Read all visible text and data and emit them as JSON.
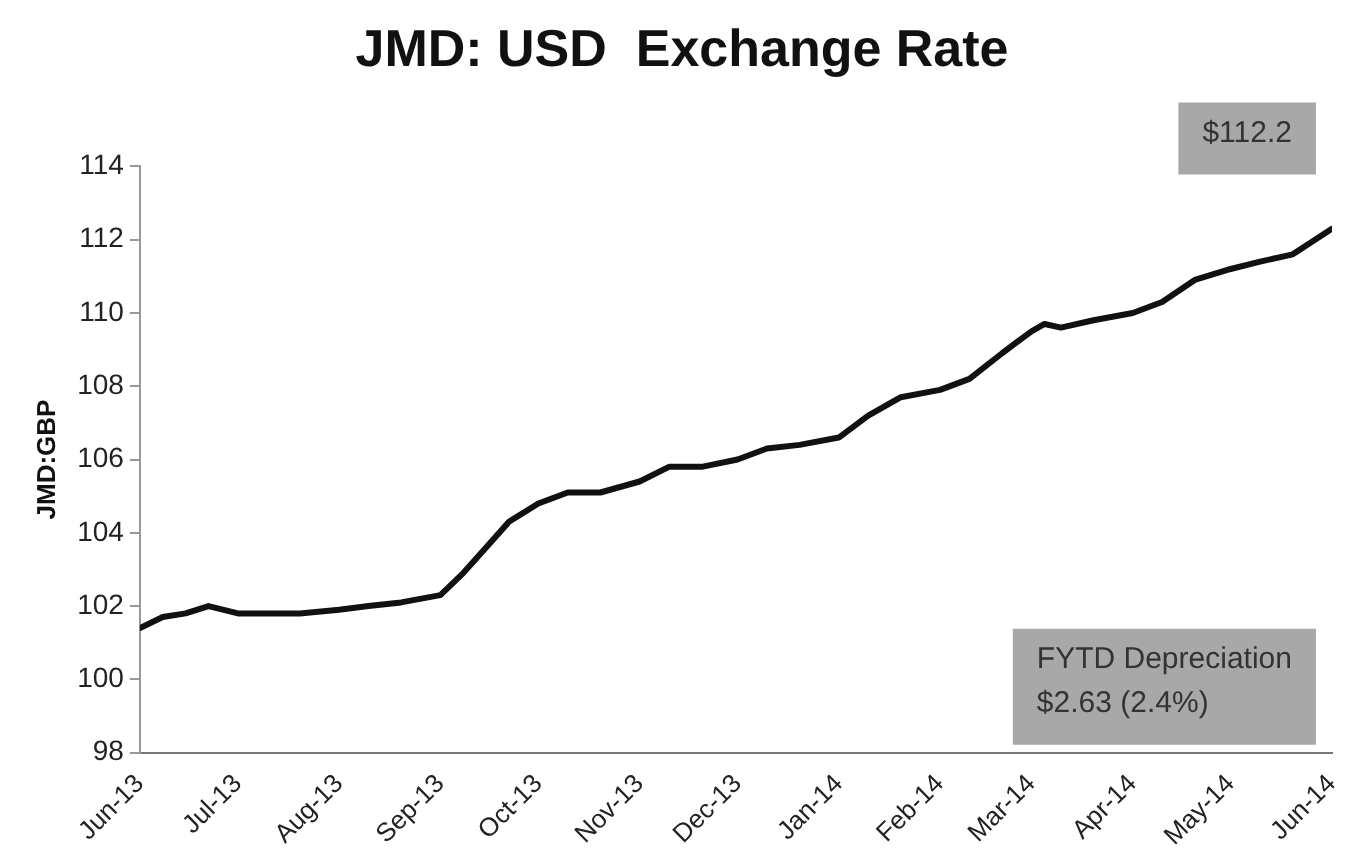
{
  "chart_data": {
    "type": "line",
    "title": "JMD: USD  Exchange Rate",
    "ylabel": "JMD:GBP",
    "x": [
      "2013-06-01",
      "2013-06-08",
      "2013-06-15",
      "2013-06-22",
      "2013-07-01",
      "2013-07-10",
      "2013-07-20",
      "2013-08-01",
      "2013-08-10",
      "2013-08-20",
      "2013-09-01",
      "2013-09-08",
      "2013-09-15",
      "2013-09-22",
      "2013-10-01",
      "2013-10-10",
      "2013-10-20",
      "2013-11-01",
      "2013-11-10",
      "2013-11-20",
      "2013-12-01",
      "2013-12-10",
      "2013-12-20",
      "2014-01-01",
      "2014-01-10",
      "2014-01-20",
      "2014-02-01",
      "2014-02-10",
      "2014-02-20",
      "2014-03-01",
      "2014-03-05",
      "2014-03-10",
      "2014-03-20",
      "2014-04-01",
      "2014-04-10",
      "2014-04-20",
      "2014-05-01",
      "2014-05-10",
      "2014-05-20",
      "2014-06-01"
    ],
    "series": [
      {
        "color": "#111111",
        "values": [
          101.4,
          101.7,
          101.8,
          102.0,
          101.8,
          101.8,
          101.8,
          101.9,
          102.0,
          102.1,
          102.3,
          102.9,
          103.6,
          104.3,
          104.8,
          105.1,
          105.1,
          105.4,
          105.8,
          105.8,
          106.0,
          106.3,
          106.4,
          106.6,
          107.2,
          107.7,
          107.9,
          108.2,
          108.9,
          109.5,
          109.7,
          109.6,
          109.8,
          110.0,
          110.3,
          110.9,
          111.2,
          111.4,
          111.6,
          112.3
        ]
      }
    ],
    "xlim": [
      "2013-06-01",
      "2014-06-01"
    ],
    "xticks": [
      {
        "value": "2013-06-01",
        "label": "Jun-13"
      },
      {
        "value": "2013-07-01",
        "label": "Jul-13"
      },
      {
        "value": "2013-08-01",
        "label": "Aug-13"
      },
      {
        "value": "2013-09-01",
        "label": "Sep-13"
      },
      {
        "value": "2013-10-01",
        "label": "Oct-13"
      },
      {
        "value": "2013-11-01",
        "label": "Nov-13"
      },
      {
        "value": "2013-12-01",
        "label": "Dec-13"
      },
      {
        "value": "2014-01-01",
        "label": "Jan-14"
      },
      {
        "value": "2014-02-01",
        "label": "Feb-14"
      },
      {
        "value": "2014-03-01",
        "label": "Mar-14"
      },
      {
        "value": "2014-04-01",
        "label": "Apr-14"
      },
      {
        "value": "2014-05-01",
        "label": "May-14"
      },
      {
        "value": "2014-06-01",
        "label": "Jun-14"
      }
    ],
    "ylim": [
      98,
      114
    ],
    "yticks": [
      98,
      100,
      102,
      104,
      106,
      108,
      110,
      112,
      114
    ],
    "grid": false,
    "legend": false,
    "marker": "none",
    "line_style": "solid",
    "annotations": [
      "$112.2",
      "FYTD Depreciation\n$2.63 (2.4%)"
    ]
  }
}
